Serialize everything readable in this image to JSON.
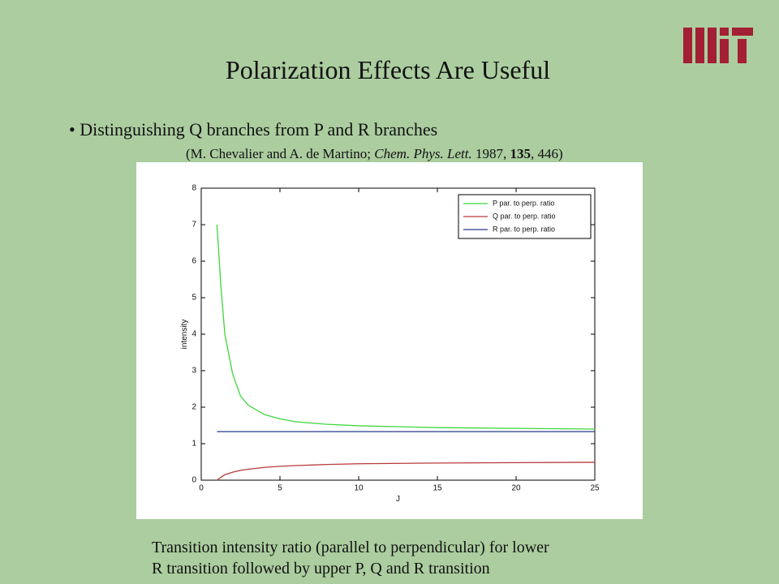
{
  "title": "Polarization Effects Are Useful",
  "bullet": "Distinguishing Q branches from P and R branches",
  "citation": {
    "authors": "(M. Chevalier and A. de Martino;",
    "journal": "Chem. Phys. Lett.",
    "year": "1987,",
    "volume": "135",
    "pages": ", 446)"
  },
  "caption": [
    "Transition intensity ratio (parallel to perpendicular) for lower",
    "R transition followed by upper P, Q and R transition"
  ],
  "chart_data": {
    "type": "line",
    "xlabel": "J",
    "ylabel": "intensity",
    "xlim": [
      0,
      25
    ],
    "ylim": [
      0,
      8
    ],
    "xticks": [
      0,
      5,
      10,
      15,
      20,
      25
    ],
    "yticks": [
      0,
      1,
      2,
      3,
      4,
      5,
      6,
      7,
      8
    ],
    "legend": "northeast",
    "x": [
      1,
      1.25,
      1.5,
      2,
      2.5,
      3,
      4,
      5,
      6,
      8,
      10,
      15,
      20,
      25
    ],
    "series": [
      {
        "name": "P par. to perp. ratio",
        "color": "#3ed63e",
        "values": [
          7.0,
          5.3,
          4.0,
          2.9,
          2.3,
          2.05,
          1.8,
          1.68,
          1.6,
          1.53,
          1.49,
          1.44,
          1.42,
          1.4
        ]
      },
      {
        "name": "Q par. to perp. ratio",
        "color": "#b83a3a",
        "values": [
          0,
          0.08,
          0.15,
          0.22,
          0.27,
          0.3,
          0.35,
          0.38,
          0.4,
          0.43,
          0.45,
          0.47,
          0.48,
          0.49
        ]
      },
      {
        "name": "R par. to perp. ratio",
        "color": "#2a3a8c",
        "values": [
          1.33,
          1.33,
          1.33,
          1.33,
          1.33,
          1.33,
          1.33,
          1.33,
          1.33,
          1.33,
          1.33,
          1.33,
          1.33,
          1.33
        ]
      }
    ]
  }
}
